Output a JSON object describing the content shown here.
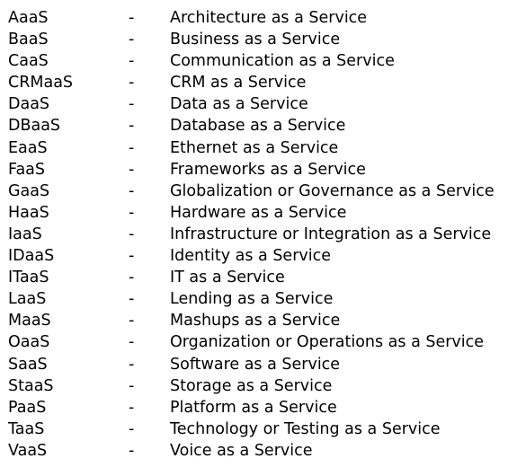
{
  "separator": "-",
  "terms": [
    {
      "abbr": "AaaS",
      "meaning": "Architecture as a Service"
    },
    {
      "abbr": "BaaS",
      "meaning": "Business as a Service"
    },
    {
      "abbr": "CaaS",
      "meaning": "Communication as a Service"
    },
    {
      "abbr": "CRMaaS",
      "meaning": "CRM as a Service"
    },
    {
      "abbr": "DaaS",
      "meaning": "Data as a Service"
    },
    {
      "abbr": "DBaaS",
      "meaning": "Database as a Service"
    },
    {
      "abbr": "EaaS",
      "meaning": "Ethernet as a Service"
    },
    {
      "abbr": "FaaS",
      "meaning": "Frameworks as a Service"
    },
    {
      "abbr": "GaaS",
      "meaning": "Globalization or Governance as a Service"
    },
    {
      "abbr": "HaaS",
      "meaning": "Hardware as a Service"
    },
    {
      "abbr": "IaaS",
      "meaning": "Infrastructure or Integration as a Service"
    },
    {
      "abbr": "IDaaS",
      "meaning": "Identity as a Service"
    },
    {
      "abbr": "ITaaS",
      "meaning": "IT as a Service"
    },
    {
      "abbr": "LaaS",
      "meaning": "Lending as a Service"
    },
    {
      "abbr": "MaaS",
      "meaning": "Mashups as a Service"
    },
    {
      "abbr": "OaaS",
      "meaning": "Organization or Operations as a Service"
    },
    {
      "abbr": "SaaS",
      "meaning": "Software as a Service"
    },
    {
      "abbr": "StaaS",
      "meaning": "Storage as a Service"
    },
    {
      "abbr": "PaaS",
      "meaning": "Platform as a Service"
    },
    {
      "abbr": "TaaS",
      "meaning": "Technology or Testing as a Service"
    },
    {
      "abbr": "VaaS",
      "meaning": "Voice as a Service"
    }
  ]
}
